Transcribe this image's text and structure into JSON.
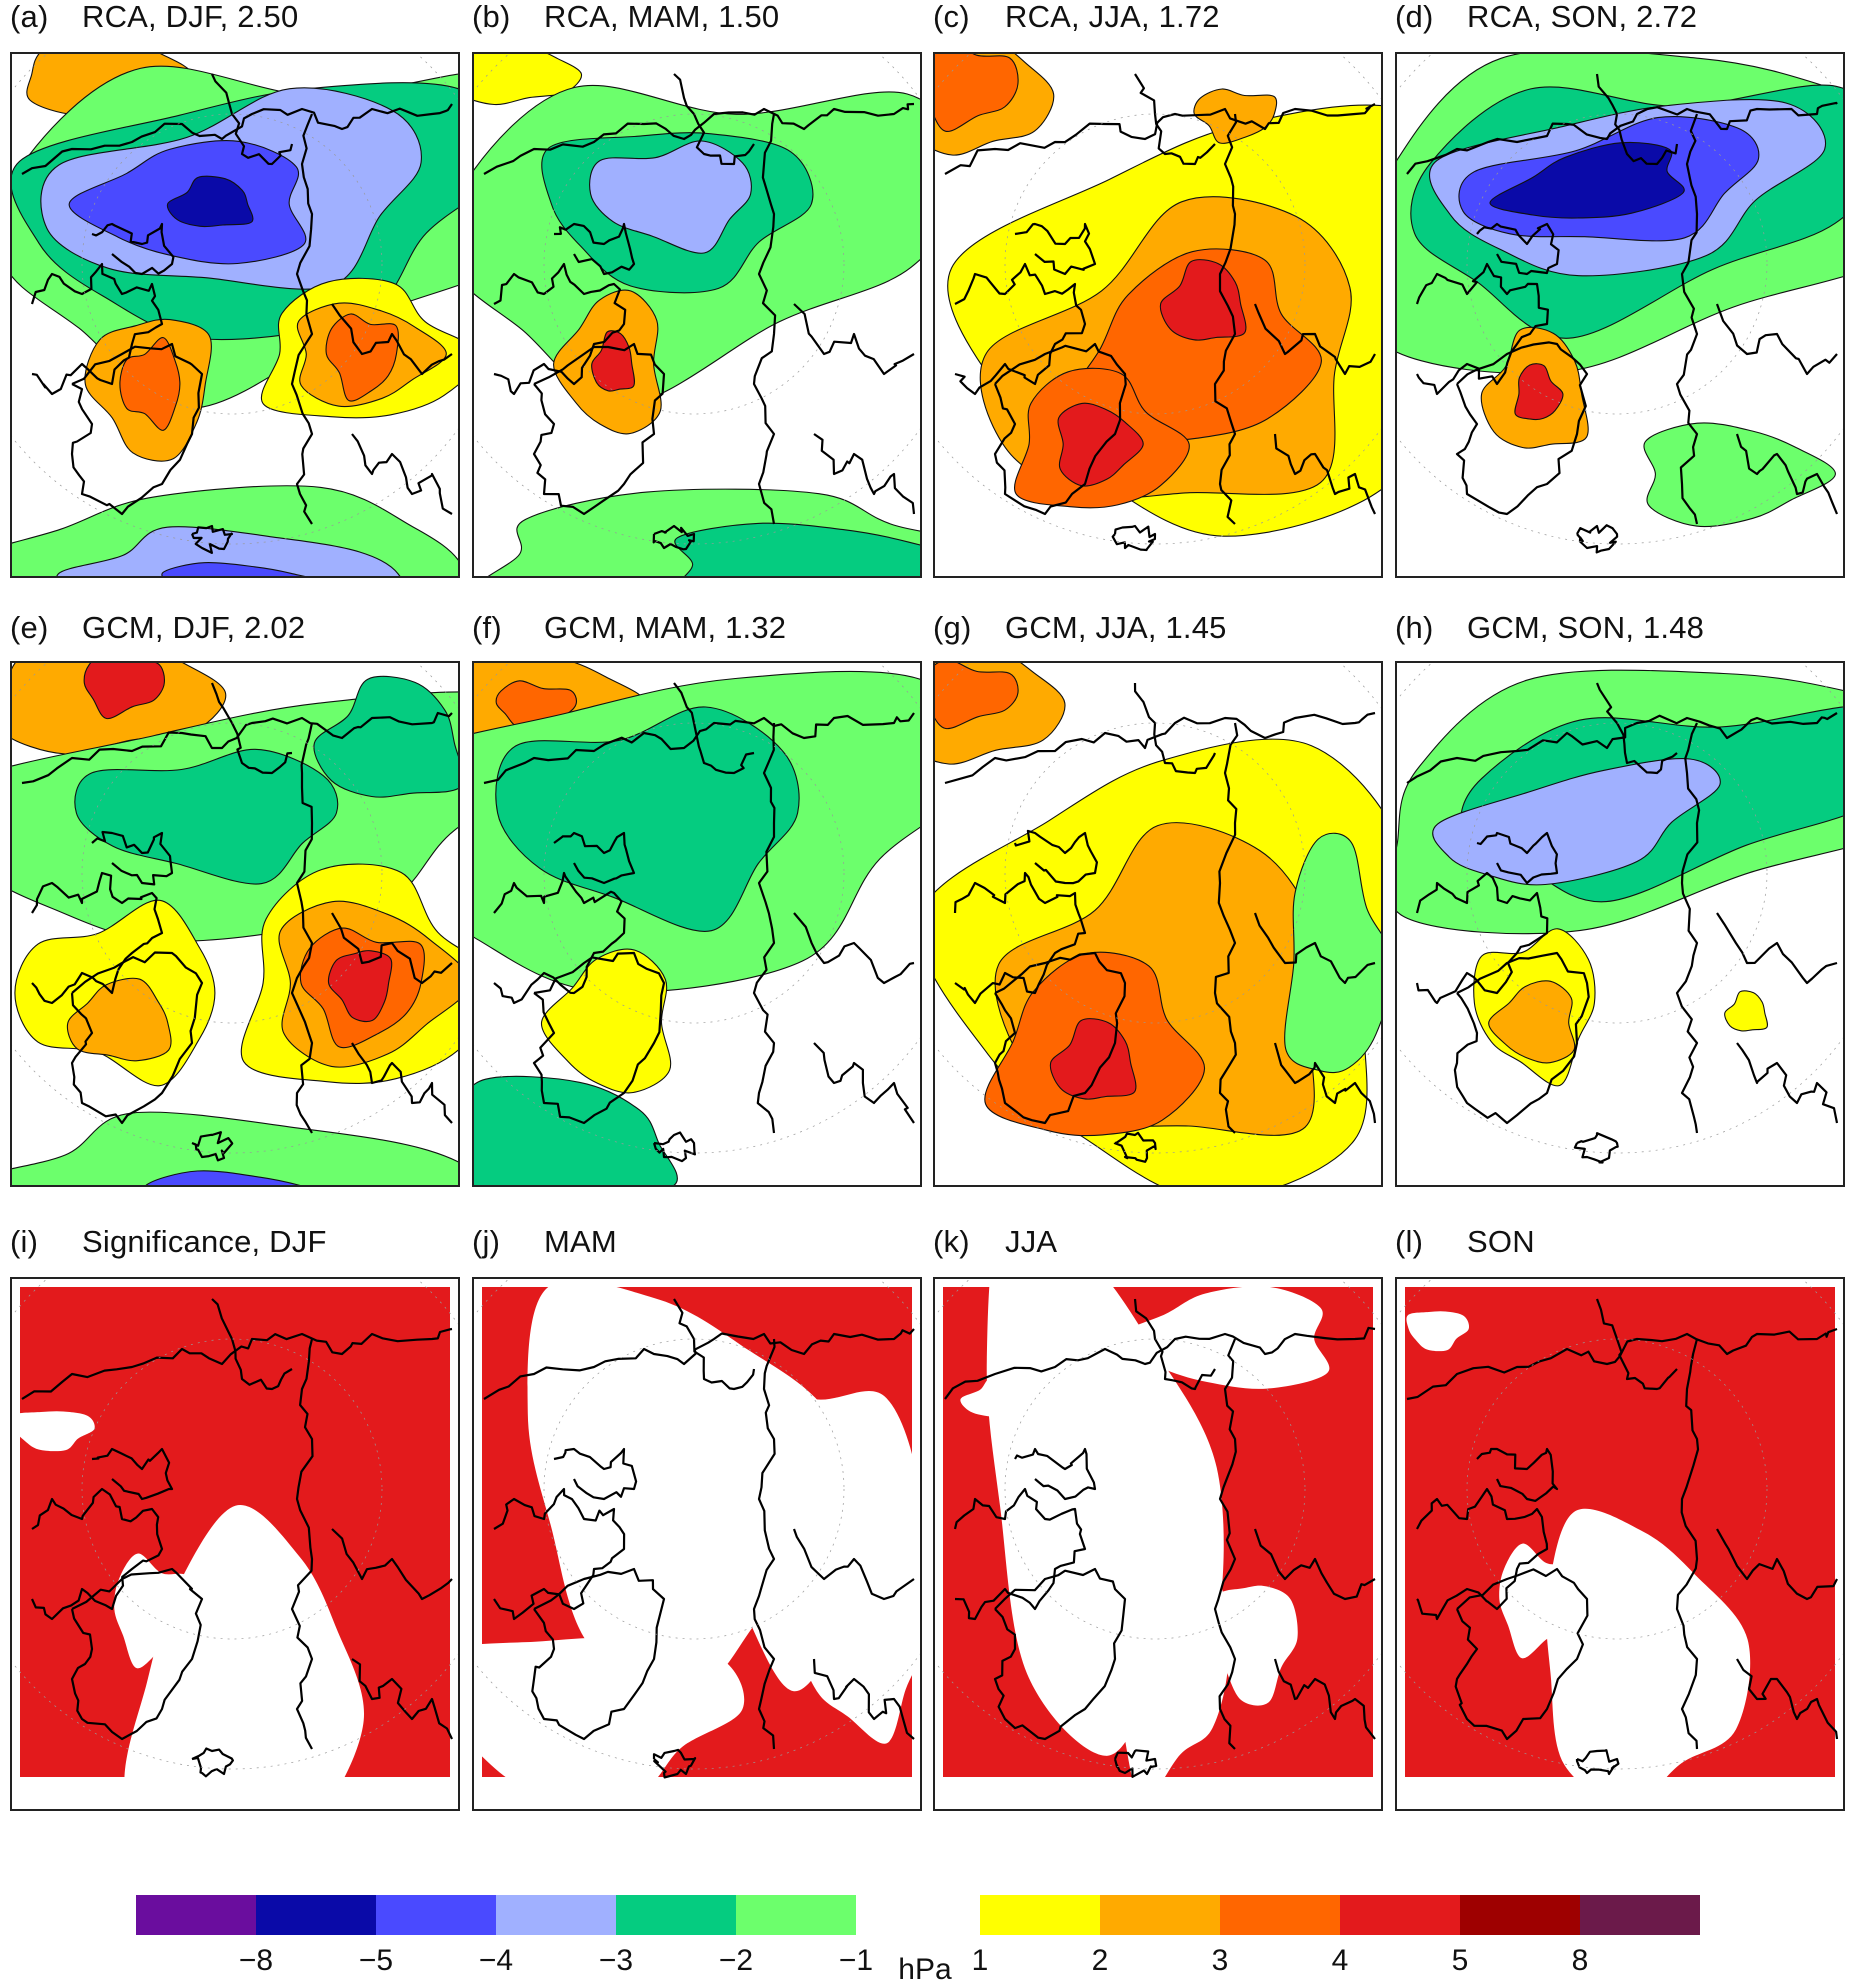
{
  "chart_data": {
    "type": "map",
    "description_units": "hPa",
    "panels": [
      {
        "id": "a",
        "label": "(a)",
        "title": "RCA, DJF, 2.50",
        "model": "RCA",
        "season": "DJF",
        "value": 2.5,
        "row": 0,
        "col": 0
      },
      {
        "id": "b",
        "label": "(b)",
        "title": "RCA, MAM, 1.50",
        "model": "RCA",
        "season": "MAM",
        "value": 1.5,
        "row": 0,
        "col": 1
      },
      {
        "id": "c",
        "label": "(c)",
        "title": "RCA, JJA, 1.72",
        "model": "RCA",
        "season": "JJA",
        "value": 1.72,
        "row": 0,
        "col": 2
      },
      {
        "id": "d",
        "label": "(d)",
        "title": "RCA, SON, 2.72",
        "model": "RCA",
        "season": "SON",
        "value": 2.72,
        "row": 0,
        "col": 3
      },
      {
        "id": "e",
        "label": "(e)",
        "title": "GCM, DJF, 2.02",
        "model": "GCM",
        "season": "DJF",
        "value": 2.02,
        "row": 1,
        "col": 0
      },
      {
        "id": "f",
        "label": "(f)",
        "title": "GCM, MAM, 1.32",
        "model": "GCM",
        "season": "MAM",
        "value": 1.32,
        "row": 1,
        "col": 1
      },
      {
        "id": "g",
        "label": "(g)",
        "title": "GCM, JJA, 1.45",
        "model": "GCM",
        "season": "JJA",
        "value": 1.45,
        "row": 1,
        "col": 2
      },
      {
        "id": "h",
        "label": "(h)",
        "title": "GCM, SON, 1.48",
        "model": "GCM",
        "season": "SON",
        "value": 1.48,
        "row": 1,
        "col": 3
      },
      {
        "id": "i",
        "label": "(i)",
        "title": "Significance, DJF",
        "season": "DJF",
        "row": 2,
        "col": 0
      },
      {
        "id": "j",
        "label": "(j)",
        "title": "MAM",
        "season": "MAM",
        "row": 2,
        "col": 1
      },
      {
        "id": "k",
        "label": "(k)",
        "title": "JJA",
        "season": "JJA",
        "row": 2,
        "col": 2
      },
      {
        "id": "l",
        "label": "(l)",
        "title": "SON",
        "season": "SON",
        "row": 2,
        "col": 3
      }
    ],
    "colorbar": {
      "unit": "hPa",
      "negative_bins": [
        {
          "color": "#6a0d9e"
        },
        {
          "color": "#0a0aa8"
        },
        {
          "color": "#4a4aff"
        },
        {
          "color": "#a0b0ff"
        },
        {
          "color": "#05cc80"
        },
        {
          "color": "#6cff6c"
        }
      ],
      "negative_ticks": [
        "−8",
        "−5",
        "−4",
        "−3",
        "−2",
        "−1"
      ],
      "positive_bins": [
        {
          "color": "#ffff00"
        },
        {
          "color": "#ffaa00"
        },
        {
          "color": "#ff6600"
        },
        {
          "color": "#e31a1c"
        },
        {
          "color": "#9e0000"
        },
        {
          "color": "#6b1a4a"
        }
      ],
      "positive_ticks": [
        "1",
        "2",
        "3",
        "4",
        "5",
        "8"
      ]
    },
    "palette": {
      "sig_red": "#e31a1c",
      "coast": "#000000",
      "frame": "#222222"
    }
  }
}
